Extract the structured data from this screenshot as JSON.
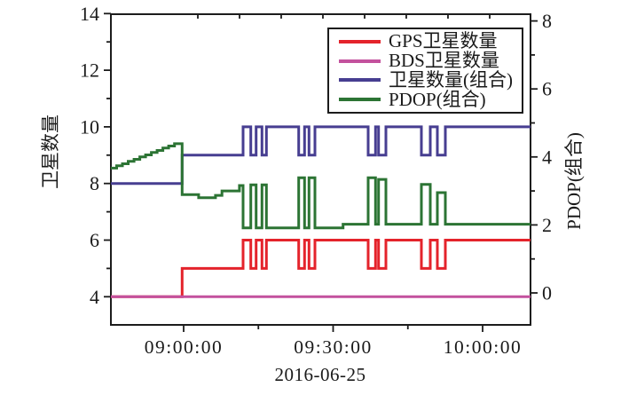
{
  "chart_data": {
    "type": "line",
    "title": "",
    "x_axis": {
      "label": "2016-06-25",
      "unit": "time",
      "range_minutes": [
        525.4,
        609.6
      ],
      "major_ticks": [
        {
          "t": 540,
          "label": "09:00:00"
        },
        {
          "t": 570,
          "label": "09:30:00"
        },
        {
          "t": 600,
          "label": "10:00:00"
        }
      ],
      "minor_ticks_minutes": [
        555,
        585
      ],
      "top_ticks_minutes": [
        542.85,
        551.22,
        559.58,
        567.95,
        576.32,
        584.68,
        593.05,
        601.42
      ]
    },
    "y_left": {
      "label": "卫星数量",
      "range": [
        3.0,
        14.0
      ],
      "major_ticks": [
        4,
        6,
        8,
        10,
        12,
        14
      ],
      "minor_ticks": [
        5,
        7,
        9,
        11,
        13
      ]
    },
    "y_right": {
      "label": "PDOP(组合)",
      "range": [
        -0.94,
        8.17
      ],
      "major_ticks": [
        0,
        2,
        4,
        6,
        8
      ],
      "minor_ticks": [
        1,
        3,
        5,
        7
      ]
    },
    "series": [
      {
        "name": "GPS卫星数量",
        "color": "#e4232b",
        "axis": "left",
        "points": [
          [
            525.4,
            4
          ],
          [
            539.7,
            5
          ],
          [
            551.93,
            6
          ],
          [
            553.48,
            5
          ],
          [
            554.55,
            6
          ],
          [
            555.72,
            5
          ],
          [
            556.61,
            6
          ],
          [
            563.09,
            5
          ],
          [
            564.27,
            6
          ],
          [
            565.16,
            5
          ],
          [
            566.35,
            6
          ],
          [
            577.03,
            5
          ],
          [
            578.51,
            6
          ],
          [
            579.11,
            5
          ],
          [
            580.59,
            6
          ],
          [
            587.71,
            5
          ],
          [
            589.49,
            6
          ],
          [
            590.92,
            5
          ],
          [
            592.52,
            6
          ],
          [
            609.6,
            6
          ]
        ]
      },
      {
        "name": "BDS卫星数量",
        "color": "#c3519d",
        "axis": "left",
        "points": [
          [
            525.4,
            4
          ],
          [
            609.6,
            4
          ]
        ]
      },
      {
        "name": "卫星数量(组合)",
        "color": "#473e91",
        "axis": "left",
        "points": [
          [
            525.4,
            8
          ],
          [
            539.7,
            9
          ],
          [
            551.93,
            10
          ],
          [
            553.48,
            9
          ],
          [
            554.55,
            10
          ],
          [
            555.72,
            9
          ],
          [
            556.61,
            10
          ],
          [
            563.09,
            9
          ],
          [
            564.27,
            10
          ],
          [
            565.16,
            9
          ],
          [
            566.35,
            10
          ],
          [
            577.03,
            9
          ],
          [
            578.51,
            10
          ],
          [
            579.11,
            9
          ],
          [
            580.59,
            10
          ],
          [
            587.71,
            9
          ],
          [
            589.49,
            10
          ],
          [
            590.92,
            9
          ],
          [
            592.52,
            10
          ],
          [
            609.6,
            10
          ]
        ]
      },
      {
        "name": "PDOP(组合)",
        "color": "#2c7434",
        "axis": "right",
        "points": [
          [
            525.4,
            3.67
          ],
          [
            526.56,
            3.74
          ],
          [
            527.72,
            3.8
          ],
          [
            528.88,
            3.87
          ],
          [
            530.04,
            3.93
          ],
          [
            531.2,
            4.0
          ],
          [
            532.36,
            4.06
          ],
          [
            533.52,
            4.13
          ],
          [
            534.68,
            4.19
          ],
          [
            535.84,
            4.26
          ],
          [
            537.0,
            4.32
          ],
          [
            538.16,
            4.39
          ],
          [
            539.7,
            2.89
          ],
          [
            543.0,
            2.8
          ],
          [
            546.4,
            2.87
          ],
          [
            547.7,
            3.0
          ],
          [
            551.2,
            3.16
          ],
          [
            551.93,
            1.91
          ],
          [
            553.48,
            3.18
          ],
          [
            554.55,
            1.91
          ],
          [
            555.72,
            3.18
          ],
          [
            556.61,
            1.91
          ],
          [
            563.09,
            3.39
          ],
          [
            564.27,
            1.91
          ],
          [
            565.16,
            3.39
          ],
          [
            566.35,
            1.91
          ],
          [
            572.0,
            2.02
          ],
          [
            577.03,
            3.39
          ],
          [
            578.51,
            2.02
          ],
          [
            579.11,
            3.34
          ],
          [
            580.59,
            2.02
          ],
          [
            587.71,
            3.19
          ],
          [
            589.49,
            2.02
          ],
          [
            590.92,
            2.95
          ],
          [
            592.52,
            2.02
          ],
          [
            609.6,
            2.02
          ]
        ]
      }
    ]
  },
  "legend": {
    "items": [
      {
        "label": "GPS卫星数量",
        "color": "#e4232b"
      },
      {
        "label": "BDS卫星数量",
        "color": "#c3519d"
      },
      {
        "label": "卫星数量(组合)",
        "color": "#473e91"
      },
      {
        "label": "PDOP(组合)",
        "color": "#2c7434"
      }
    ]
  },
  "colors": {
    "frame": "#1c1c1c",
    "text": "#1a1a1a",
    "background": "#ffffff"
  }
}
